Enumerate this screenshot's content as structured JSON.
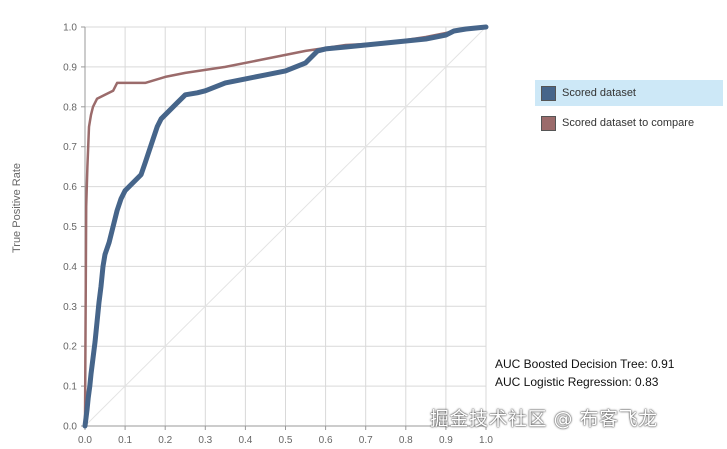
{
  "chart_data": {
    "type": "line",
    "title": "",
    "xlabel": "",
    "ylabel": "True Positive Rate",
    "xlim": [
      0,
      1
    ],
    "ylim": [
      0,
      1
    ],
    "xticks": [
      "0.0",
      "0.1",
      "0.2",
      "0.3",
      "0.4",
      "0.5",
      "0.6",
      "0.7",
      "0.8",
      "0.9",
      "1.0"
    ],
    "yticks": [
      "0.0",
      "0.1",
      "0.2",
      "0.3",
      "0.4",
      "0.5",
      "0.6",
      "0.7",
      "0.8",
      "0.9",
      "1.0"
    ],
    "grid": true,
    "legend_position": "right",
    "diagonal_reference": true,
    "series": [
      {
        "name": "Scored dataset",
        "color": "#46658a",
        "selected": true,
        "points": [
          [
            0.0,
            0.0
          ],
          [
            0.005,
            0.04
          ],
          [
            0.008,
            0.07
          ],
          [
            0.012,
            0.1
          ],
          [
            0.015,
            0.13
          ],
          [
            0.02,
            0.17
          ],
          [
            0.025,
            0.21
          ],
          [
            0.03,
            0.26
          ],
          [
            0.035,
            0.31
          ],
          [
            0.04,
            0.35
          ],
          [
            0.045,
            0.4
          ],
          [
            0.05,
            0.43
          ],
          [
            0.06,
            0.46
          ],
          [
            0.07,
            0.5
          ],
          [
            0.08,
            0.54
          ],
          [
            0.09,
            0.57
          ],
          [
            0.1,
            0.59
          ],
          [
            0.11,
            0.6
          ],
          [
            0.12,
            0.61
          ],
          [
            0.13,
            0.62
          ],
          [
            0.14,
            0.63
          ],
          [
            0.15,
            0.66
          ],
          [
            0.16,
            0.69
          ],
          [
            0.17,
            0.72
          ],
          [
            0.18,
            0.75
          ],
          [
            0.19,
            0.77
          ],
          [
            0.21,
            0.79
          ],
          [
            0.23,
            0.81
          ],
          [
            0.25,
            0.83
          ],
          [
            0.28,
            0.835
          ],
          [
            0.3,
            0.84
          ],
          [
            0.35,
            0.86
          ],
          [
            0.4,
            0.87
          ],
          [
            0.45,
            0.88
          ],
          [
            0.5,
            0.89
          ],
          [
            0.55,
            0.91
          ],
          [
            0.58,
            0.94
          ],
          [
            0.6,
            0.945
          ],
          [
            0.65,
            0.95
          ],
          [
            0.7,
            0.955
          ],
          [
            0.75,
            0.96
          ],
          [
            0.8,
            0.965
          ],
          [
            0.85,
            0.97
          ],
          [
            0.9,
            0.98
          ],
          [
            0.92,
            0.99
          ],
          [
            0.95,
            0.995
          ],
          [
            1.0,
            1.0
          ]
        ]
      },
      {
        "name": "Scored dataset to compare",
        "color": "#9b6b6b",
        "selected": false,
        "points": [
          [
            0.0,
            0.0
          ],
          [
            0.003,
            0.55
          ],
          [
            0.006,
            0.65
          ],
          [
            0.01,
            0.75
          ],
          [
            0.015,
            0.78
          ],
          [
            0.02,
            0.8
          ],
          [
            0.03,
            0.82
          ],
          [
            0.05,
            0.83
          ],
          [
            0.07,
            0.84
          ],
          [
            0.08,
            0.86
          ],
          [
            0.15,
            0.86
          ],
          [
            0.2,
            0.875
          ],
          [
            0.25,
            0.885
          ],
          [
            0.35,
            0.9
          ],
          [
            0.45,
            0.92
          ],
          [
            0.55,
            0.94
          ],
          [
            0.65,
            0.955
          ],
          [
            0.75,
            0.96
          ],
          [
            0.85,
            0.975
          ],
          [
            0.9,
            0.985
          ],
          [
            0.95,
            0.995
          ],
          [
            1.0,
            1.0
          ]
        ]
      }
    ]
  },
  "auc": {
    "line1": "AUC Boosted Decision Tree: 0.91",
    "line2": "AUC Logistic Regression: 0.83"
  },
  "watermark": "掘金技术社区 @ 布客飞龙"
}
